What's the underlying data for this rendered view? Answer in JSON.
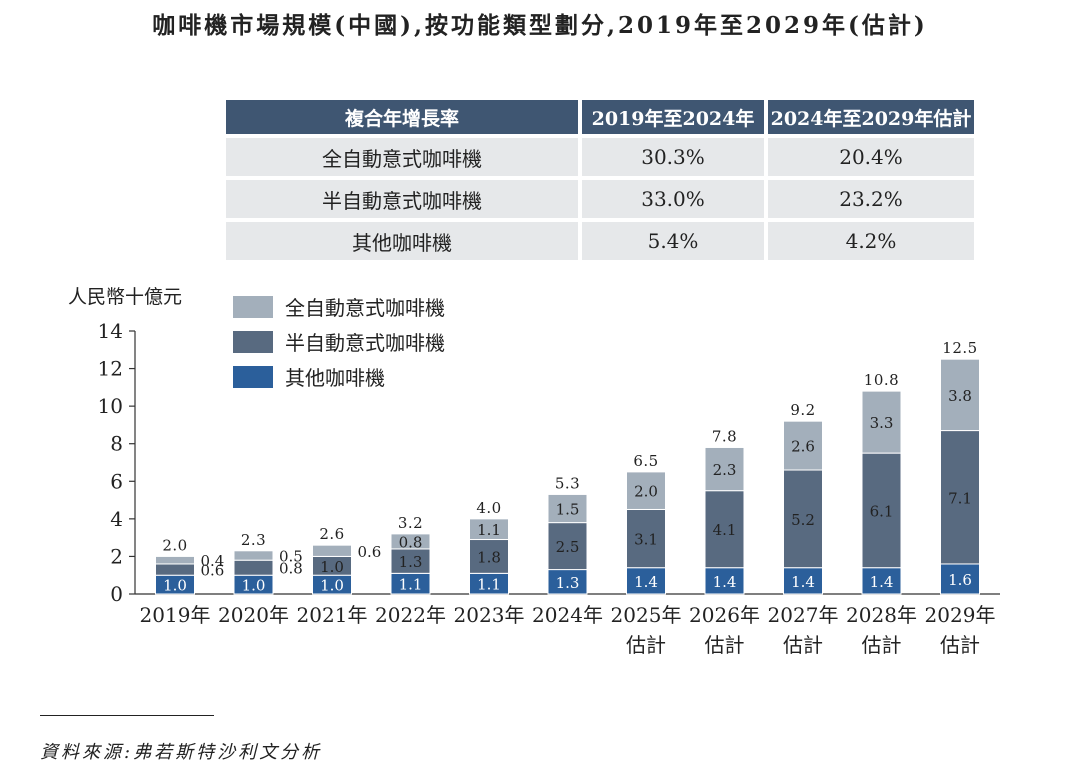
{
  "title": "咖啡機市場規模(中國),按功能類型劃分,2019年至2029年(估計)",
  "cagr_table": {
    "headers": [
      "複合年增長率",
      "2019年至2024年",
      "2024年至2029年估計"
    ],
    "rows": [
      [
        "全自動意式咖啡機",
        "30.3%",
        "20.4%"
      ],
      [
        "半自動意式咖啡機",
        "33.0%",
        "23.2%"
      ],
      [
        "其他咖啡機",
        "5.4%",
        "4.2%"
      ]
    ]
  },
  "source": "資料來源:弗若斯特沙利文分析",
  "colors": {
    "header_bg": "#3f5672",
    "row_bg": "#e6e8ea",
    "full_auto": "#a3afbb",
    "semi_auto": "#586a80",
    "other": "#2b5f9b"
  },
  "chart_data": {
    "type": "bar",
    "stacked": true,
    "ylabel": "人民幣十億元",
    "ylim": [
      0,
      14
    ],
    "yticks": [
      0,
      2,
      4,
      6,
      8,
      10,
      12,
      14
    ],
    "grid": false,
    "legend_position": "top-left",
    "categories": [
      [
        "2019年"
      ],
      [
        "2020年"
      ],
      [
        "2021年"
      ],
      [
        "2022年"
      ],
      [
        "2023年"
      ],
      [
        "2024年"
      ],
      [
        "2025年",
        "估計"
      ],
      [
        "2026年",
        "估計"
      ],
      [
        "2027年",
        "估計"
      ],
      [
        "2028年",
        "估計"
      ],
      [
        "2029年",
        "估計"
      ]
    ],
    "series": [
      {
        "name": "其他咖啡機",
        "values": [
          1.0,
          1.0,
          1.0,
          1.1,
          1.1,
          1.3,
          1.4,
          1.4,
          1.4,
          1.4,
          1.6
        ]
      },
      {
        "name": "半自動意式咖啡機",
        "values": [
          0.6,
          0.8,
          1.0,
          1.3,
          1.8,
          2.5,
          3.1,
          4.1,
          5.2,
          6.1,
          7.1
        ]
      },
      {
        "name": "全自動意式咖啡機",
        "values": [
          0.4,
          0.5,
          0.6,
          0.8,
          1.1,
          1.5,
          2.0,
          2.3,
          2.6,
          3.3,
          3.8
        ]
      }
    ],
    "totals": [
      2.0,
      2.3,
      2.6,
      3.2,
      4.0,
      5.3,
      6.5,
      7.8,
      9.2,
      10.8,
      12.5
    ],
    "legend_order": [
      "全自動意式咖啡機",
      "半自動意式咖啡機",
      "其他咖啡機"
    ]
  }
}
